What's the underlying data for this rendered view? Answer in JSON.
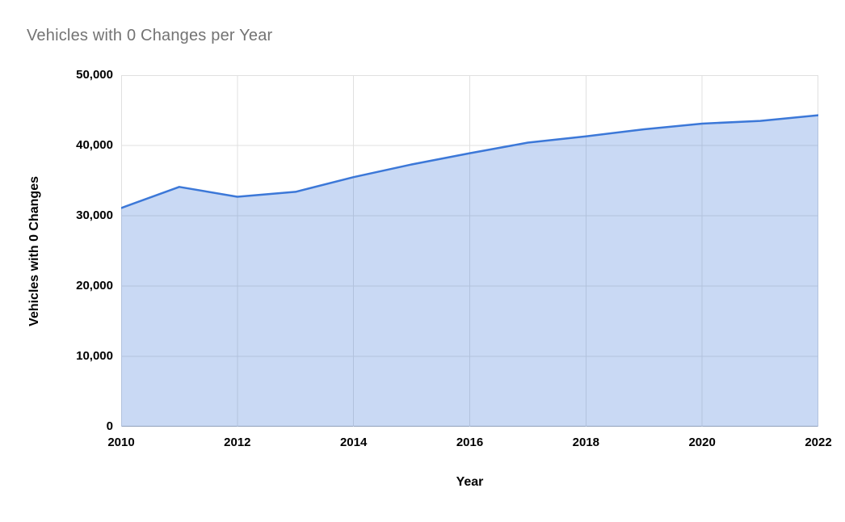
{
  "window": {
    "background": "#ffffff"
  },
  "chart_data": {
    "type": "area",
    "title": "Vehicles with 0 Changes per Year",
    "xlabel": "Year",
    "ylabel": "Vehicles with 0 Changes",
    "x": [
      2010,
      2011,
      2012,
      2013,
      2014,
      2015,
      2016,
      2017,
      2018,
      2019,
      2020,
      2021,
      2022
    ],
    "series": [
      {
        "name": "Vehicles with 0 Changes",
        "values": [
          31100,
          34100,
          32700,
          33400,
          35500,
          37300,
          38900,
          40400,
          41300,
          42300,
          43100,
          43500,
          44300
        ]
      }
    ],
    "xlim": [
      2010,
      2022
    ],
    "ylim": [
      0,
      50000
    ],
    "x_ticks": [
      2010,
      2012,
      2014,
      2016,
      2018,
      2020,
      2022
    ],
    "x_tick_labels": [
      "2010",
      "2012",
      "2014",
      "2016",
      "2018",
      "2020",
      "2022"
    ],
    "y_ticks": [
      0,
      10000,
      20000,
      30000,
      40000,
      50000
    ],
    "y_tick_labels": [
      "0",
      "10,000",
      "20,000",
      "30,000",
      "40,000",
      "50,000"
    ],
    "grid": true,
    "legend": "none",
    "colors": {
      "line": "#3c78d8",
      "fill": "#3c78d8",
      "fill_opacity": 0.28,
      "grid": "#e0e0e0",
      "baseline": "#b0b0b0",
      "title_text": "#737373",
      "axis_text": "#000000"
    }
  }
}
